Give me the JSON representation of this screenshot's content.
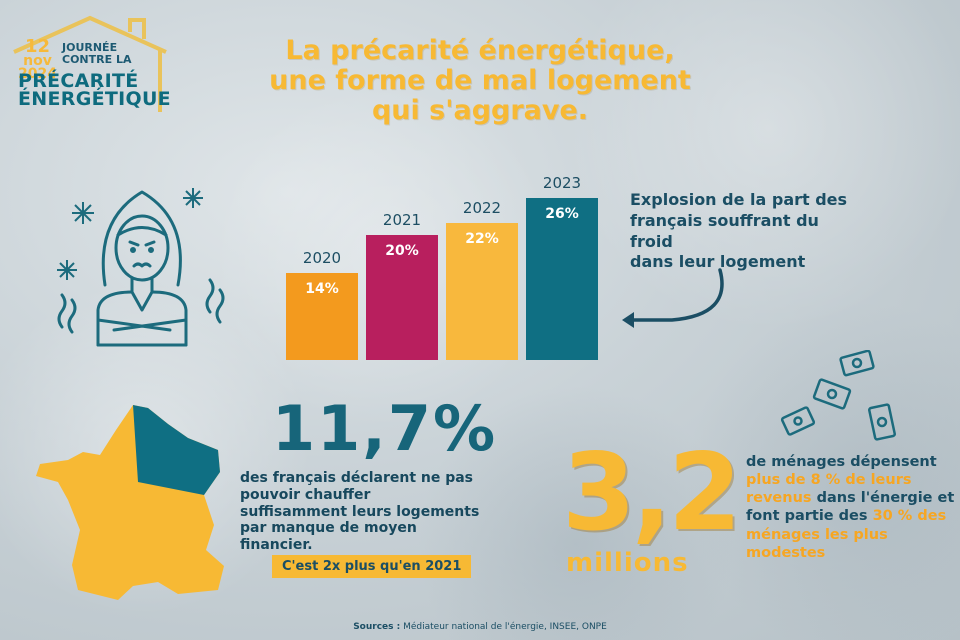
{
  "logo": {
    "day": "12",
    "month": "nov",
    "year": "2024",
    "line1": "JOURNÉE",
    "line2": "CONTRE LA",
    "line3": "PRÉCARITÉ",
    "line4": "ÉNERGÉTIQUE"
  },
  "title": {
    "line1": "La précarité énergétique,",
    "line2": "une forme de mal logement",
    "line3": "qui s'aggrave."
  },
  "chart_data": {
    "type": "bar",
    "categories": [
      "2020",
      "2021",
      "2022",
      "2023"
    ],
    "values": [
      14,
      20,
      22,
      26
    ],
    "value_labels": [
      "14%",
      "20%",
      "22%",
      "26%"
    ],
    "colors": [
      "#f39a1e",
      "#b81f5e",
      "#f8b83d",
      "#0f6f83"
    ],
    "title": "",
    "xlabel": "",
    "ylabel": ""
  },
  "annotation": {
    "text_line1": "Explosion de la part des",
    "text_line2": "français souffrant du froid",
    "text_line3": "dans leur logement"
  },
  "stat1": {
    "value": "11,7%",
    "desc": "des français déclarent ne pas pouvoir chauffer suffisamment leurs logements par manque de moyen financier.",
    "note": "C'est 2x plus qu'en 2021"
  },
  "stat2": {
    "value": "3,2",
    "unit": "millions",
    "t1": "de ménages dépensent ",
    "hl1": "plus de 8 % de leurs revenus",
    "t2": " dans l'énergie et font partie des ",
    "hl2": "30 % des ménages les plus modestes"
  },
  "sources": {
    "label": "Sources :",
    "text": " Médiateur national de l'énergie, INSEE, ONPE"
  },
  "icons": [
    "house-outline-icon",
    "cold-woman-icon",
    "snowflake-icon",
    "france-map-icon",
    "flying-money-icon",
    "curved-arrow-icon"
  ]
}
